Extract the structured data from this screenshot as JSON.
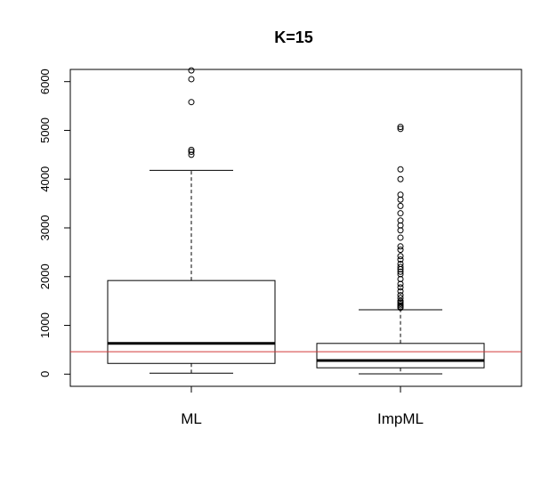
{
  "chart_data": {
    "type": "box",
    "title": "K=15",
    "xlabel": "",
    "ylabel": "",
    "ylim": [
      -250,
      6250
    ],
    "yticks": [
      0,
      1000,
      2000,
      3000,
      4000,
      5000,
      6000
    ],
    "categories": [
      "ML",
      "ImpML"
    ],
    "reference_line": {
      "y": 460,
      "color": "#d33a3a"
    },
    "boxes": [
      {
        "name": "ML",
        "min": 20,
        "q1": 220,
        "median": 630,
        "q3": 1920,
        "max": 4180,
        "outliers": [
          4500,
          4560,
          4600,
          5580,
          6050,
          6230
        ]
      },
      {
        "name": "ImpML",
        "min": 5,
        "q1": 130,
        "median": 280,
        "q3": 630,
        "max": 1320,
        "outliers": [
          1360,
          1380,
          1410,
          1440,
          1470,
          1500,
          1560,
          1620,
          1700,
          1780,
          1850,
          1950,
          2050,
          2100,
          2150,
          2200,
          2260,
          2350,
          2420,
          2550,
          2620,
          2800,
          2950,
          3050,
          3150,
          3300,
          3450,
          3580,
          3680,
          4000,
          4200,
          5030,
          5070
        ]
      }
    ]
  }
}
